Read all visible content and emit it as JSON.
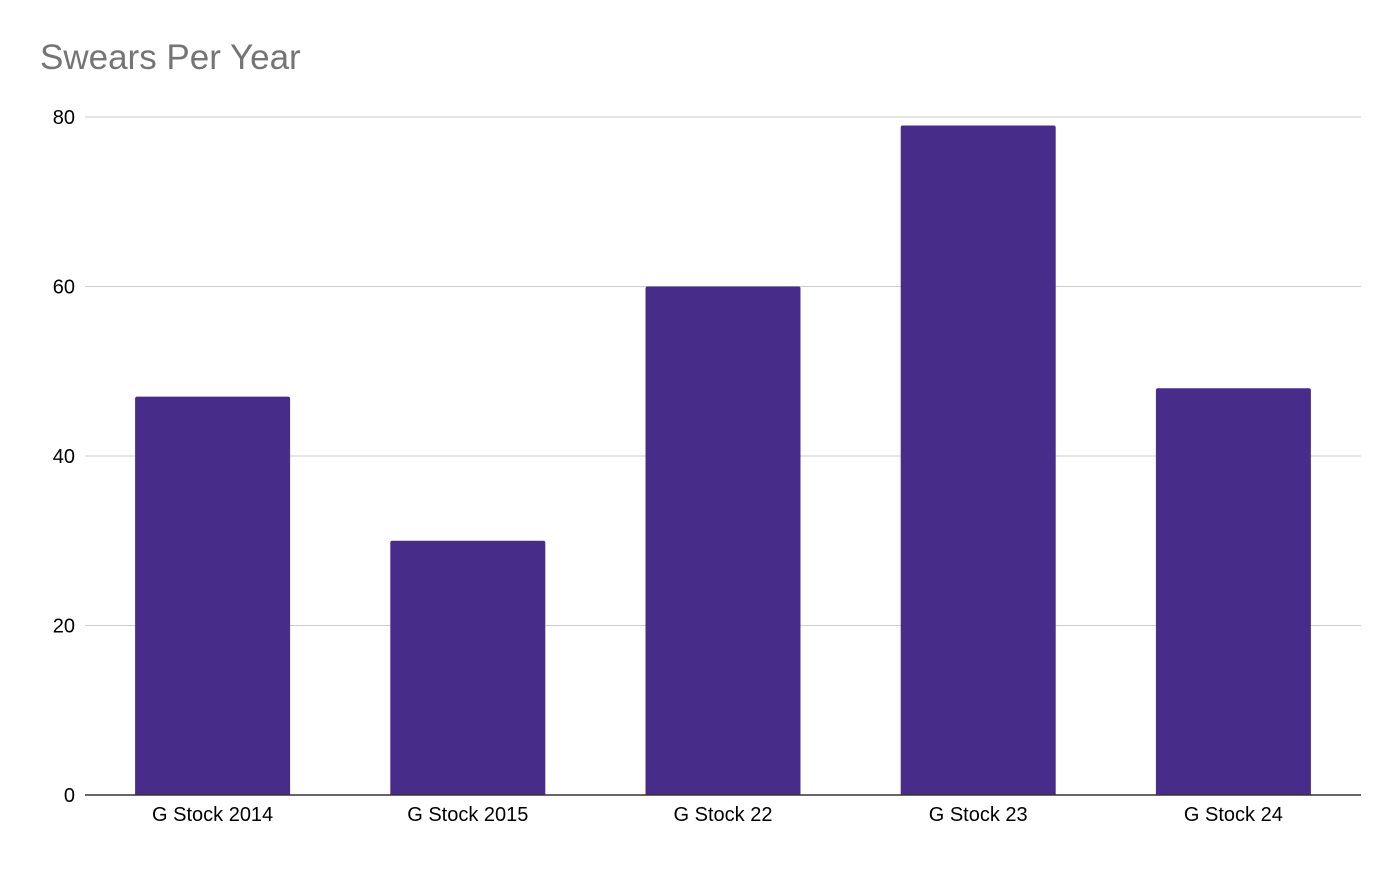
{
  "chart_data": {
    "type": "bar",
    "title": "Swears Per Year",
    "xlabel": "",
    "ylabel": "",
    "categories": [
      "G Stock 2014",
      "G Stock 2015",
      "G Stock 22",
      "G Stock 23",
      "G Stock 24"
    ],
    "values": [
      47,
      30,
      60,
      79,
      48
    ],
    "ylim": [
      0,
      80
    ],
    "yticks": [
      0,
      20,
      40,
      60,
      80
    ],
    "grid": true,
    "legend": "none",
    "bar_color": "#472c8a",
    "grid_color": "#cccccc",
    "axis_color": "#333333",
    "title_color": "#757575"
  }
}
